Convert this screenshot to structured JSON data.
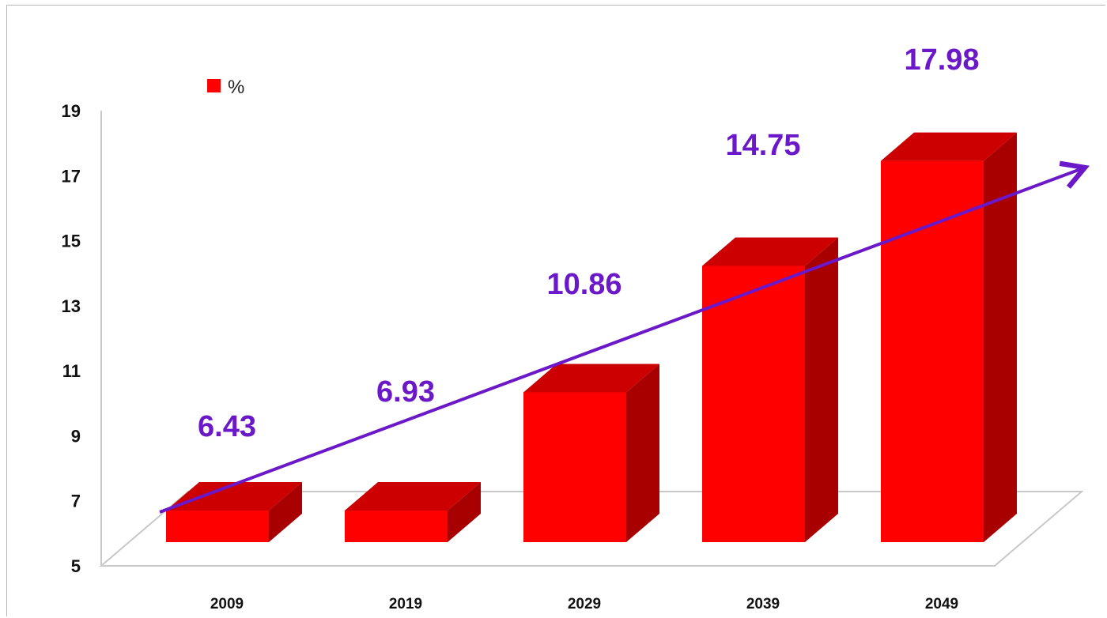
{
  "chart_data": {
    "type": "bar",
    "title": "",
    "xlabel": "",
    "ylabel": "",
    "categories": [
      "2009",
      "2019",
      "2029",
      "2039",
      "2049"
    ],
    "series": [
      {
        "name": "%",
        "values": [
          6.43,
          6.93,
          10.86,
          14.75,
          17.98
        ]
      }
    ],
    "data_labels": [
      "6.43",
      "6.93",
      "10.86",
      "14.75",
      "17.98"
    ],
    "ylim": [
      5,
      19
    ],
    "yticks": [
      5,
      7,
      9,
      11,
      13,
      15,
      17,
      19
    ],
    "grid": false,
    "legend_placement": "top-left",
    "trend_arrow": true,
    "colors": {
      "bar_front": "#ff0000",
      "bar_top": "#cc0000",
      "bar_side": "#a80000",
      "labels": "#6a18c8",
      "arrow": "#6a18c8",
      "floor": "#c8c8c8"
    }
  }
}
